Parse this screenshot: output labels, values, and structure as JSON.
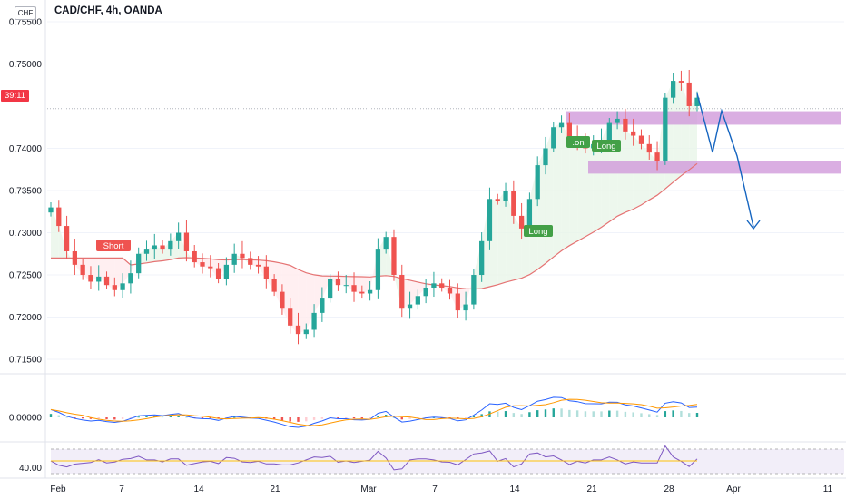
{
  "header": {
    "title": "CAD/CHF, 4h, OANDA",
    "currency_badge": "CHF"
  },
  "price_tag": {
    "countdown": "39:11",
    "label_prefix": "0"
  },
  "colors": {
    "up": "#26a69a",
    "down": "#ef5350",
    "ma": "#e57373",
    "zone": "#ce93d8",
    "projection": "#1565c0",
    "fill_green": "#e8f5e9",
    "fill_red": "#ffebee",
    "macd_line": "#2962ff",
    "signal_line": "#ff9800",
    "rsi_line": "#7e57c2",
    "rsi_ma": "#ffc107"
  },
  "chart_data": {
    "type": "candlestick",
    "symbol": "CAD/CHF",
    "timeframe": "4h",
    "source": "OANDA",
    "ylim": [
      0.7135,
      0.7565
    ],
    "y_ticks": [
      "0.75500",
      "0.75000",
      "0.74000",
      "0.73500",
      "0.73000",
      "0.72500",
      "0.72000",
      "0.71500"
    ],
    "x_ticks": [
      "Feb",
      "7",
      "14",
      "21",
      "Mar",
      "7",
      "14",
      "21",
      "28",
      "Apr",
      "11"
    ],
    "close_path": [
      0.733,
      0.7308,
      0.7278,
      0.7262,
      0.725,
      0.7242,
      0.7248,
      0.7238,
      0.7232,
      0.724,
      0.7252,
      0.7275,
      0.728,
      0.7285,
      0.728,
      0.729,
      0.73,
      0.7278,
      0.7265,
      0.726,
      0.7258,
      0.7245,
      0.7262,
      0.7275,
      0.727,
      0.7262,
      0.726,
      0.7245,
      0.723,
      0.721,
      0.719,
      0.718,
      0.7185,
      0.7205,
      0.7222,
      0.7245,
      0.7238,
      0.7238,
      0.723,
      0.7228,
      0.7232,
      0.728,
      0.7295,
      0.725,
      0.721,
      0.7215,
      0.7225,
      0.7235,
      0.724,
      0.7235,
      0.7228,
      0.7208,
      0.7215,
      0.725,
      0.729,
      0.734,
      0.7338,
      0.735,
      0.732,
      0.7305,
      0.734,
      0.738,
      0.74,
      0.7425,
      0.743,
      0.7412,
      0.741,
      0.74,
      0.7405,
      0.741,
      0.743,
      0.7435,
      0.742,
      0.7415,
      0.7405,
      0.7395,
      0.7385,
      0.746,
      0.748,
      0.7478,
      0.745,
      0.746
    ],
    "annotations": [
      {
        "text": "Short",
        "kind": "sell"
      },
      {
        "text": "Long",
        "kind": "buy"
      },
      {
        "text": ".on",
        "kind": "buy"
      },
      {
        "text": "Long",
        "kind": "buy"
      }
    ],
    "zones": [
      {
        "from": 0.7428,
        "to": 0.7444
      },
      {
        "from": 0.737,
        "to": 0.7385
      }
    ],
    "macd_label": "0.00000",
    "rsi_label": "40.00"
  }
}
